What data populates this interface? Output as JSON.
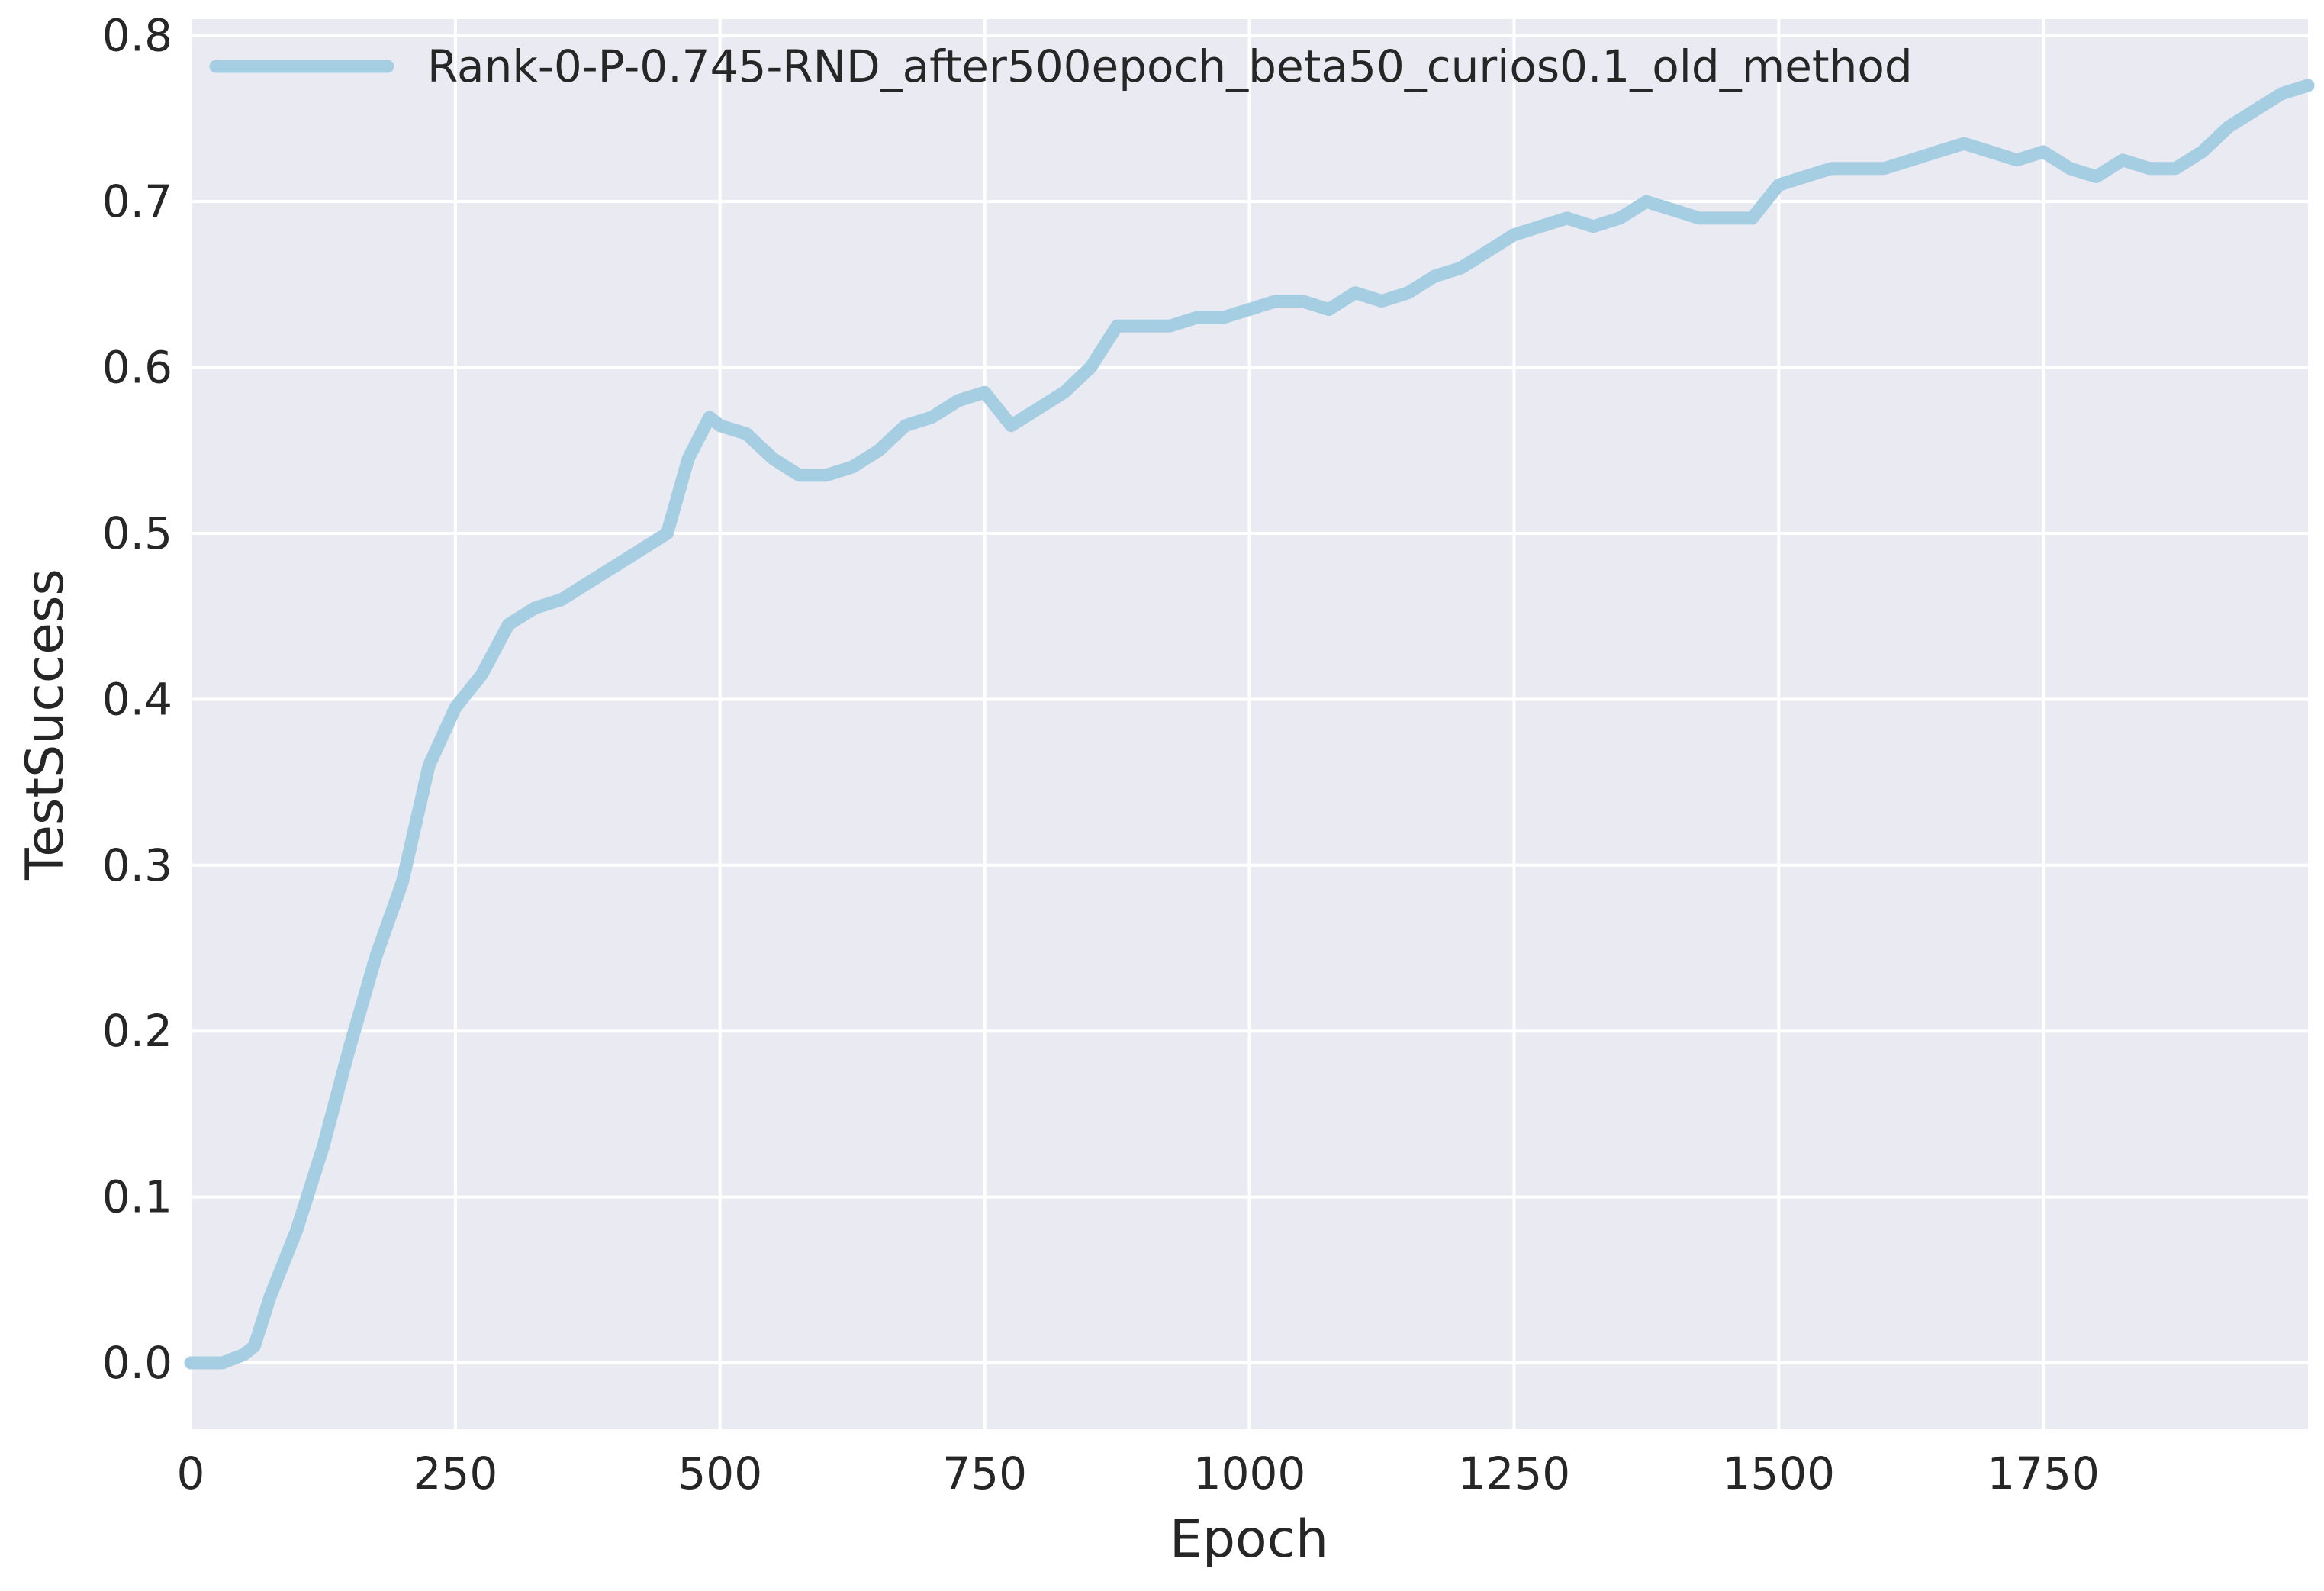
{
  "chart_data": {
    "type": "line",
    "title": "",
    "xlabel": "Epoch",
    "ylabel": "TestSuccess",
    "xlim": [
      0,
      2000
    ],
    "ylim": [
      -0.04,
      0.81
    ],
    "xticks": [
      0,
      250,
      500,
      750,
      1000,
      1250,
      1500,
      1750
    ],
    "xtick_labels": [
      "0",
      "250",
      "500",
      "750",
      "1000",
      "1250",
      "1500",
      "1750"
    ],
    "yticks": [
      0.0,
      0.1,
      0.2,
      0.3,
      0.4,
      0.5,
      0.6,
      0.7,
      0.8
    ],
    "ytick_labels": [
      "0.0",
      "0.1",
      "0.2",
      "0.3",
      "0.4",
      "0.5",
      "0.6",
      "0.7",
      "0.8"
    ],
    "grid": true,
    "legend_position": "top-left",
    "background_color": "#eaeaf2",
    "grid_color": "#ffffff",
    "series": [
      {
        "name": "Rank-0-P-0.745-RND_after500epoch_beta50_curios0.1_old_method",
        "color": "#a6cee3",
        "x": [
          0,
          30,
          50,
          60,
          75,
          100,
          125,
          150,
          175,
          200,
          225,
          250,
          275,
          300,
          325,
          350,
          375,
          400,
          425,
          450,
          470,
          490,
          500,
          525,
          550,
          575,
          600,
          625,
          650,
          675,
          700,
          725,
          750,
          775,
          800,
          825,
          850,
          875,
          900,
          925,
          950,
          975,
          1000,
          1025,
          1050,
          1075,
          1100,
          1125,
          1150,
          1175,
          1200,
          1225,
          1250,
          1275,
          1300,
          1325,
          1350,
          1375,
          1400,
          1425,
          1450,
          1475,
          1500,
          1525,
          1550,
          1575,
          1600,
          1625,
          1650,
          1675,
          1700,
          1725,
          1750,
          1775,
          1800,
          1825,
          1850,
          1875,
          1900,
          1925,
          1950,
          1975,
          2000
        ],
        "y": [
          0.0,
          0.0,
          0.005,
          0.01,
          0.04,
          0.08,
          0.13,
          0.19,
          0.245,
          0.29,
          0.36,
          0.395,
          0.415,
          0.445,
          0.455,
          0.46,
          0.47,
          0.48,
          0.49,
          0.5,
          0.545,
          0.57,
          0.565,
          0.56,
          0.545,
          0.535,
          0.535,
          0.54,
          0.55,
          0.565,
          0.57,
          0.58,
          0.585,
          0.565,
          0.575,
          0.585,
          0.6,
          0.625,
          0.625,
          0.625,
          0.63,
          0.63,
          0.635,
          0.64,
          0.64,
          0.635,
          0.645,
          0.64,
          0.645,
          0.655,
          0.66,
          0.67,
          0.68,
          0.685,
          0.69,
          0.685,
          0.69,
          0.7,
          0.695,
          0.69,
          0.69,
          0.69,
          0.71,
          0.715,
          0.72,
          0.72,
          0.72,
          0.725,
          0.73,
          0.735,
          0.73,
          0.725,
          0.73,
          0.72,
          0.715,
          0.725,
          0.72,
          0.72,
          0.73,
          0.745,
          0.755,
          0.765,
          0.77
        ]
      }
    ]
  }
}
